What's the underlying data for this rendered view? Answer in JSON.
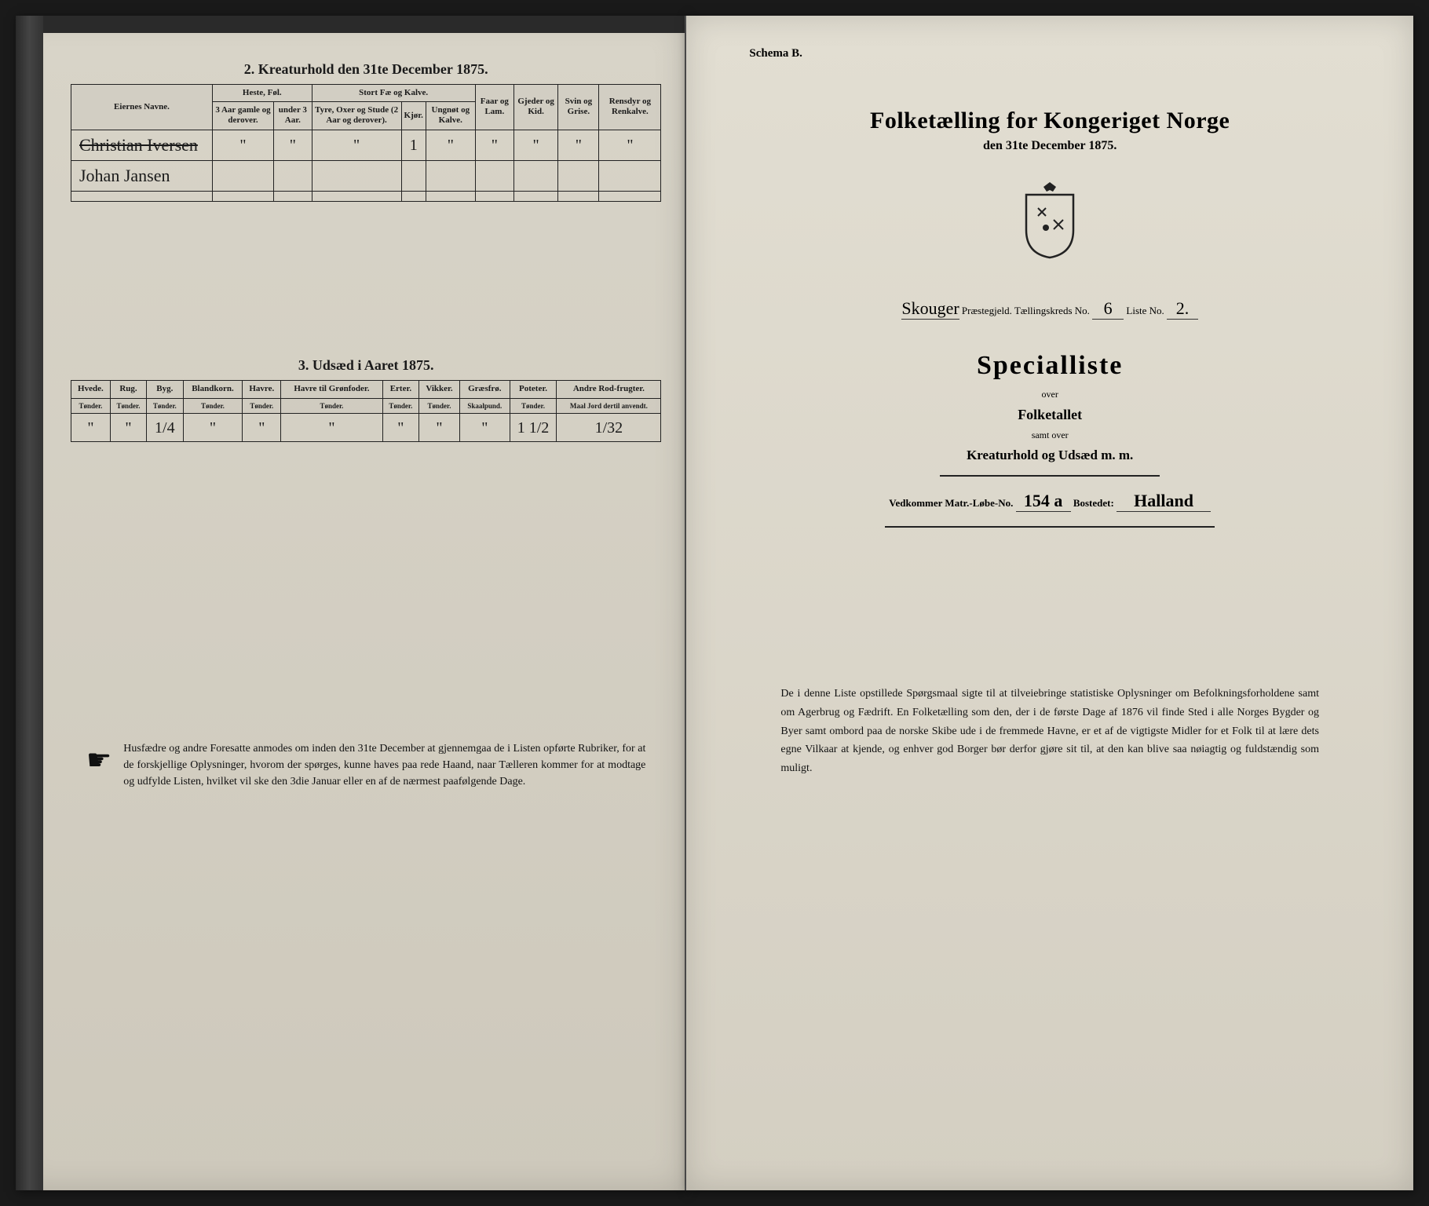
{
  "left": {
    "section2_title": "2.  Kreaturhold den 31te December 1875.",
    "table2": {
      "headers": {
        "col1": "Eiernes Navne.",
        "group_heste": "Heste, Føl.",
        "group_stort": "Stort Fæ og Kalve.",
        "heste_sub1": "3 Aar gamle og derover.",
        "heste_sub2": "under 3 Aar.",
        "stort_sub1": "Tyre, Oxer og Stude (2 Aar og derover).",
        "stort_sub2": "Kjør.",
        "stort_sub3": "Ungnøt og Kalve.",
        "faar": "Faar og Lam.",
        "gjeder": "Gjeder og Kid.",
        "svin": "Svin og Grise.",
        "ren": "Rensdyr og Renkalve."
      },
      "rows": [
        {
          "name": "Christian Iversen",
          "struck": true,
          "v": [
            "\"",
            "\"",
            "\"",
            "1",
            "\"",
            "\"",
            "\"",
            "\"",
            "\""
          ]
        },
        {
          "name": "Johan Jansen",
          "struck": false,
          "v": [
            "",
            "",
            "",
            "",
            "",
            "",
            "",
            "",
            ""
          ]
        },
        {
          "name": "",
          "struck": false,
          "v": [
            "",
            "",
            "",
            "",
            "",
            "",
            "",
            "",
            ""
          ]
        }
      ]
    },
    "section3_title": "3.  Udsæd i Aaret 1875.",
    "table3": {
      "headers": [
        "Hvede.",
        "Rug.",
        "Byg.",
        "Blandkorn.",
        "Havre.",
        "Havre til Grønfoder.",
        "Erter.",
        "Vikker.",
        "Græsfrø.",
        "Poteter.",
        "Andre Rod-frugter."
      ],
      "subheaders": [
        "Tønder.",
        "Tønder.",
        "Tønder.",
        "Tønder.",
        "Tønder.",
        "Tønder.",
        "Tønder.",
        "Tønder.",
        "Skaalpund.",
        "Tønder.",
        "Maal Jord dertil anvendt."
      ],
      "row": [
        "\"",
        "\"",
        "1/4",
        "\"",
        "\"",
        "\"",
        "\"",
        "\"",
        "\"",
        "1 1/2",
        "1/32"
      ]
    },
    "footnote": "Husfædre og andre Foresatte anmodes om inden den 31te December at gjennemgaa de i Listen opførte Rubriker, for at de forskjellige Oplysninger, hvorom der spørges, kunne haves paa rede Haand, naar Tælleren kommer for at modtage og udfylde Listen, hvilket vil ske den 3die Januar eller en af de nærmest paafølgende Dage."
  },
  "right": {
    "schema": "Schema B.",
    "main_title": "Folketælling for Kongeriget Norge",
    "sub_date": "den 31te December 1875.",
    "prestegjeld_label": "Skouger",
    "prestegjeld_suffix": " Præstegjeld.  Tællingskreds No. ",
    "kreds_no": "6",
    "liste_label": "  Liste No. ",
    "liste_no": "2.",
    "special_title": "Specialliste",
    "over1": "over",
    "folketallet": "Folketallet",
    "over2": "samt over",
    "kreatur": "Kreaturhold og Udsæd m. m.",
    "vedk_label": "Vedkommer Matr.-Løbe-No. ",
    "matr_no": "154 a",
    "bostedet_label": "  Bostedet: ",
    "bostedet": "Halland",
    "footnote": "De i denne Liste opstillede Spørgsmaal sigte til at tilveiebringe statistiske Oplysninger om Befolkningsforholdene samt om Agerbrug og Fædrift.  En Folketælling som den, der i de første Dage af 1876 vil finde Sted i alle Norges Bygder og Byer samt ombord paa de norske Skibe ude i de fremmede Havne, er et af de vigtigste Midler for et Folk til at lære dets egne Vilkaar at kjende, og enhver god Borger bør derfor gjøre sit til, at den kan blive saa nøiagtig og fuldstændig som muligt."
  }
}
